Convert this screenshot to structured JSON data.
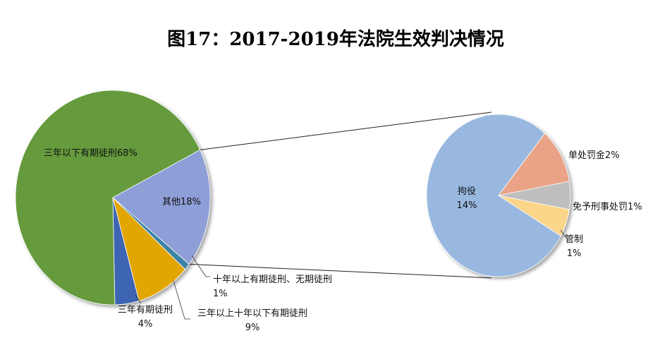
{
  "chart_data": {
    "type": "bar-of-pie",
    "title": "图17：2017-2019年法院生效判决情况",
    "main_pie": {
      "slices": [
        {
          "key": "three_to_ten",
          "label_lines": [
            "三年以上十年以下有期徒刑",
            "9%"
          ],
          "value": 9,
          "color": "#E2A600"
        },
        {
          "key": "under_three_years",
          "label_lines": [
            "三年有期徒刑",
            "4%"
          ],
          "value": 4,
          "color": "#3C65B3"
        },
        {
          "key": "below_three",
          "label_lines": [
            "三年以下有期徒刑68%"
          ],
          "value": 68,
          "color": "#659A3C"
        },
        {
          "key": "other",
          "label_lines": [
            "其他18%"
          ],
          "value": 18,
          "color": "#8E9ED6"
        },
        {
          "key": "over_ten_life",
          "label_lines": [
            "十年以上有期徒刑、无期徒刑",
            "1%"
          ],
          "value": 1,
          "color": "#3B82A6"
        }
      ]
    },
    "secondary_pie": {
      "parent": "other",
      "slices": [
        {
          "key": "fine_only",
          "label_lines": [
            "单处罚金2%"
          ],
          "value": 2,
          "color": "#EAA386"
        },
        {
          "key": "exempt",
          "label_lines": [
            "免予刑事处罚1%"
          ],
          "value": 1,
          "color": "#BEBEBE"
        },
        {
          "key": "surveillance",
          "label_lines": [
            "管制",
            "1%"
          ],
          "value": 1,
          "color": "#FAD58A"
        },
        {
          "key": "detention",
          "label_lines": [
            "拘役",
            "14%"
          ],
          "value": 14,
          "color": "#98B8E0"
        }
      ]
    }
  }
}
